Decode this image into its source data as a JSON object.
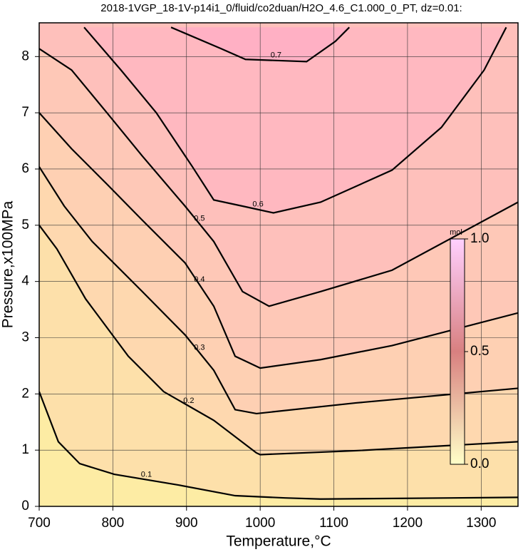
{
  "chart_data": {
    "type": "contour",
    "title": "2018-1VGP_18-1V-p14i1_0/fluid/co2duan/H2O_4.6_C1.000_0_PT, dz=0.01:",
    "x_label": "Temperature,°C",
    "y_label": "Pressure,x100MPa",
    "xlim": [
      700,
      1350
    ],
    "ylim": [
      0,
      8.6
    ],
    "xticks": [
      700,
      800,
      900,
      1000,
      1100,
      1200,
      1300
    ],
    "yticks": [
      0,
      1,
      2,
      3,
      4,
      5,
      6,
      7,
      8
    ],
    "grid": true,
    "colors": [
      "#fdeca4",
      "#ffb0c4"
    ],
    "contours": [
      {
        "level": 0.1,
        "x": [
          700,
          726,
          755,
          802,
          889,
          966,
          1034,
          1082,
          1350
        ],
        "y": [
          2.04,
          1.15,
          0.76,
          0.57,
          0.38,
          0.19,
          0.15,
          0.13,
          0.16
        ]
      },
      {
        "level": 0.2,
        "x": [
          700,
          724,
          763,
          821,
          869,
          937,
          995,
          1000,
          1130,
          1350
        ],
        "y": [
          5.0,
          4.58,
          3.69,
          2.67,
          2.04,
          1.53,
          0.95,
          0.92,
          0.99,
          1.15
        ]
      },
      {
        "level": 0.3,
        "x": [
          700,
          734,
          772,
          840,
          898,
          937,
          966,
          995,
          1130,
          1350
        ],
        "y": [
          6.04,
          5.34,
          4.71,
          3.82,
          3.05,
          2.42,
          1.72,
          1.65,
          1.84,
          2.1
        ]
      },
      {
        "level": 0.4,
        "x": [
          700,
          744,
          792,
          840,
          898,
          937,
          966,
          1000,
          1082,
          1179,
          1350
        ],
        "y": [
          7.0,
          6.36,
          5.73,
          5.09,
          4.33,
          3.56,
          2.67,
          2.46,
          2.61,
          2.86,
          3.44
        ]
      },
      {
        "level": 0.5,
        "x": [
          700,
          744,
          792,
          840,
          898,
          937,
          976,
          1012,
          1082,
          1179,
          1350
        ],
        "y": [
          8.14,
          7.76,
          7.0,
          6.23,
          5.34,
          4.71,
          3.82,
          3.56,
          3.82,
          4.2,
          5.41
        ]
      },
      {
        "level": 0.6,
        "x": [
          761,
          811,
          859,
          908,
          937,
          976,
          1018,
          1082,
          1179,
          1246,
          1304,
          1334
        ],
        "y": [
          8.52,
          7.76,
          7.0,
          6.04,
          5.45,
          5.34,
          5.22,
          5.41,
          5.98,
          6.74,
          7.76,
          8.52
        ]
      },
      {
        "level": 0.7,
        "x": [
          879,
          947,
          980,
          1063,
          1102,
          1121
        ],
        "y": [
          8.52,
          8.14,
          7.95,
          7.91,
          8.27,
          8.52
        ]
      }
    ],
    "colorbar": {
      "label": "mol",
      "lim": [
        0,
        1
      ],
      "colors": [
        "#ffffc8",
        "#d88080",
        "#ffd0ff"
      ],
      "ticks": [
        {
          "value": 0,
          "label": "0.0"
        },
        0.5,
        {
          "value": 1,
          "label": "1.0"
        }
      ]
    }
  }
}
